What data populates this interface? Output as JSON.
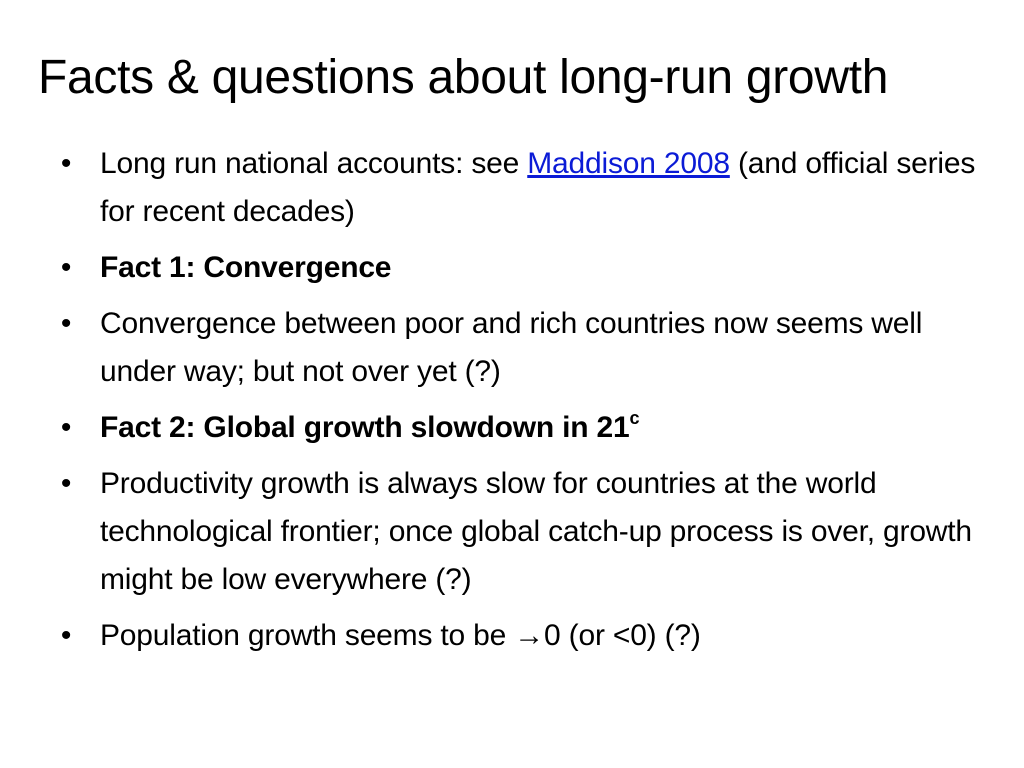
{
  "slide": {
    "title": "Facts & questions about long-run growth",
    "bullet_glyph": "•",
    "bullets": [
      {
        "before": "Long run national accounts: see ",
        "link": "Maddison 2008",
        "after": " (and official series for recent decades)"
      },
      {
        "text": "Fact 1: Convergence"
      },
      {
        "text": "Convergence between poor and rich countries now seems well under way; but not over yet (?)"
      },
      {
        "text": "Fact 2: Global growth slowdown in 21",
        "sup": "c"
      },
      {
        "text": "Productivity growth is always slow for countries at the world technological frontier; once global catch-up process is over, growth might be low everywhere (?)"
      },
      {
        "text": "Population growth seems to be →0 (or <0)  (?)"
      }
    ]
  },
  "colors": {
    "link": "#0b1bd6",
    "text": "#000000",
    "background": "#ffffff"
  }
}
